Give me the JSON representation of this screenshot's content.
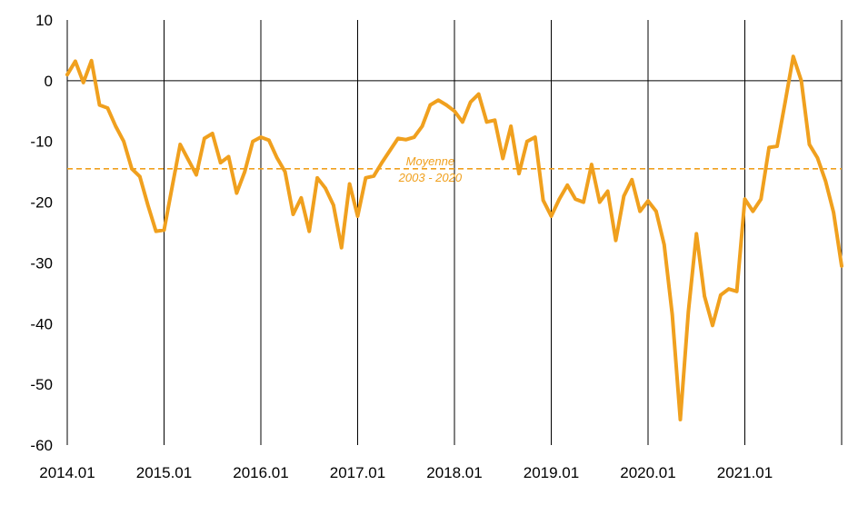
{
  "chart_data": {
    "type": "line",
    "title": "",
    "xlabel": "",
    "ylabel": "",
    "ylim": [
      -60,
      10
    ],
    "yticks": [
      "10",
      "0",
      "-10",
      "-20",
      "-30",
      "-40",
      "-50",
      "-60"
    ],
    "xticks": [
      "2014.01",
      "2015.01",
      "2016.01",
      "2017.01",
      "2018.01",
      "2019.01",
      "2020.01",
      "2021.01"
    ],
    "grid": "vertical lines at each year",
    "colors": {
      "series": "#F0A01E",
      "average": "#F0A01E",
      "axis": "#000000"
    },
    "average_line": {
      "value": -14.5,
      "label_line1": "Moyenne",
      "label_line2": "2003 - 2020"
    },
    "series": [
      {
        "values": [
          1,
          3.2,
          -0.3,
          3.3,
          -4,
          -4.5,
          -7.5,
          -10,
          -14.5,
          -15.8,
          -20.5,
          -24.8,
          -24.6,
          -17.5,
          -10.5,
          -13,
          -15.5,
          -9.5,
          -8.7,
          -13.5,
          -12.5,
          -18.5,
          -15,
          -10,
          -9.3,
          -9.8,
          -12.7,
          -15,
          -22,
          -19.3,
          -24.8,
          -16,
          -17.7,
          -20.5,
          -27.5,
          -17,
          -22.3,
          -16,
          -15.7,
          -13.5,
          -11.5,
          -9.5,
          -9.7,
          -9.3,
          -7.5,
          -4,
          -3.2,
          -4,
          -5,
          -6.8,
          -3.5,
          -2.2,
          -6.8,
          -6.5,
          -12.8,
          -7.5,
          -15.3,
          -10,
          -9.3,
          -19.7,
          -22.3,
          -19.5,
          -17.2,
          -19.5,
          -20,
          -13.8,
          -20,
          -18.2,
          -26.3,
          -19,
          -16.3,
          -21.5,
          -19.8,
          -21.5,
          -27,
          -38.5,
          -55.8,
          -38,
          -25.2,
          -35.5,
          -40.3,
          -35.3,
          -34.3,
          -34.7,
          -19.5,
          -21.5,
          -19.5,
          -11,
          -10.8,
          -3.5,
          4,
          0,
          -10.5,
          -12.7,
          -16.5,
          -21.7,
          -30.5
        ]
      }
    ]
  }
}
